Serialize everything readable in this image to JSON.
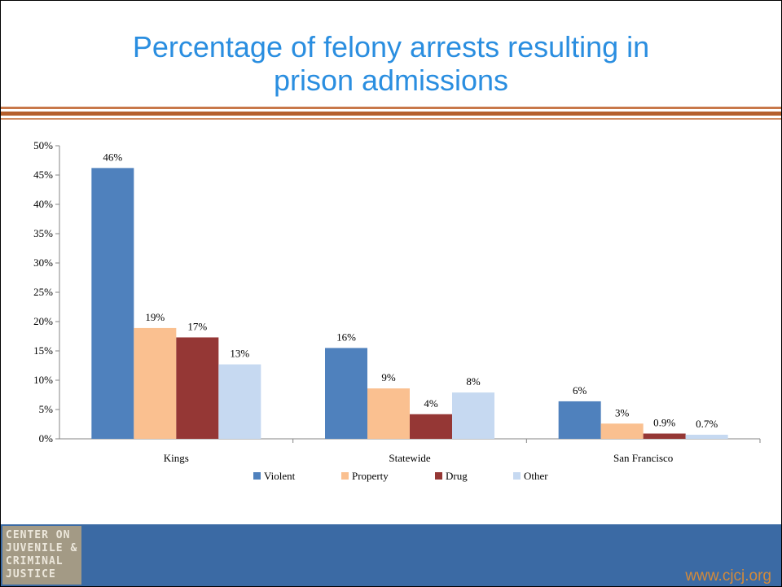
{
  "slide": {
    "title_lines": [
      "Percentage of felony arrests resulting in",
      "prison admissions"
    ],
    "footer_url": "www.cjcj.org",
    "logo_lines": [
      "CENTER ON",
      "JUVENILE &",
      "CRIMINAL",
      "JUSTICE"
    ],
    "title_color": "#2a8ee0",
    "footer_color": "#3b6aa4",
    "url_color": "#d38a3a"
  },
  "chart_data": {
    "type": "bar",
    "title": "Percentage of felony arrests resulting in prison admissions",
    "categories": [
      "Kings",
      "Statewide",
      "San Francisco"
    ],
    "series": [
      {
        "name": "Violent",
        "values": [
          46.2,
          15.5,
          6.4
        ],
        "labels": [
          "46%",
          "16%",
          "6%"
        ],
        "color": "#4f81bd"
      },
      {
        "name": "Property",
        "values": [
          18.9,
          8.6,
          2.6
        ],
        "labels": [
          "19%",
          "9%",
          "3%"
        ],
        "color": "#fac090"
      },
      {
        "name": "Drug",
        "values": [
          17.3,
          4.2,
          0.9
        ],
        "labels": [
          "17%",
          "4%",
          "0.9%"
        ],
        "color": "#953735"
      },
      {
        "name": "Other",
        "values": [
          12.7,
          7.9,
          0.7
        ],
        "labels": [
          "13%",
          "8%",
          "0.7%"
        ],
        "color": "#c6d9f1"
      }
    ],
    "y_ticks": [
      "0%",
      "5%",
      "10%",
      "15%",
      "20%",
      "25%",
      "30%",
      "35%",
      "40%",
      "45%",
      "50%"
    ],
    "ylim": [
      0,
      50
    ],
    "grid": false,
    "legend_position": "bottom"
  }
}
